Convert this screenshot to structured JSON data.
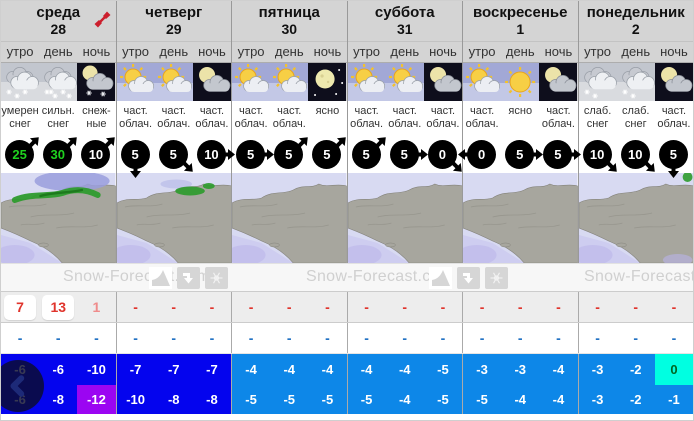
{
  "brand": "Snow-Forecast.com",
  "time_labels": [
    "утро",
    "день",
    "ночь"
  ],
  "colors": {
    "temp_dark_blue": "#0404ee",
    "temp_light_blue": "#0d87e8",
    "temp_purple": "#9b05f2",
    "temp_cyan": "#00ffe1",
    "snow_red": "#e0342c",
    "rain_blue": "#2272c3",
    "wind_green": "#1fd11f",
    "header_gray": "#d4d4d4",
    "expand_red": "#cc1f2d"
  },
  "watermark_icon_names": [
    "area-curve-icon",
    "download-icon",
    "snowflake-icon"
  ],
  "days": [
    {
      "name": "среда",
      "date": "28",
      "has_expand_icon": true,
      "map": "storm-west",
      "periods": [
        {
          "icon": "snow-moderate",
          "desc": [
            "умерен",
            "снег"
          ],
          "wind": "25",
          "wind_green": true,
          "dir": "NE"
        },
        {
          "icon": "snow-heavy",
          "desc": [
            "сильн.",
            "снег"
          ],
          "wind": "30",
          "wind_green": true,
          "dir": "NE"
        },
        {
          "icon": "night-snow",
          "desc": [
            "снеж-",
            "ные"
          ],
          "wind": "10",
          "wind_green": false,
          "dir": "NE"
        }
      ],
      "snow": [
        "7",
        "13",
        "1"
      ],
      "snow_styles": [
        "pill",
        "pill",
        "faded"
      ],
      "rain": [
        "-",
        "-",
        "-"
      ],
      "tmax": [
        {
          "v": "-6",
          "c": "dark"
        },
        {
          "v": "-6",
          "c": "dark"
        },
        {
          "v": "-10",
          "c": "dark"
        }
      ],
      "tmin": [
        {
          "v": "-6",
          "c": "dark"
        },
        {
          "v": "-8",
          "c": "dark"
        },
        {
          "v": "-12",
          "c": "purple"
        }
      ]
    },
    {
      "name": "четверг",
      "date": "29",
      "has_expand_icon": false,
      "map": "storm-east",
      "periods": [
        {
          "icon": "partly-sunny",
          "desc": [
            "част.",
            "облач."
          ],
          "wind": "5",
          "wind_green": false,
          "dir": "S"
        },
        {
          "icon": "partly-sunny",
          "desc": [
            "част.",
            "облач."
          ],
          "wind": "5",
          "wind_green": false,
          "dir": "SE"
        },
        {
          "icon": "night-partly-cloudy",
          "desc": [
            "част.",
            "облач."
          ],
          "wind": "10",
          "wind_green": false,
          "dir": "E"
        }
      ],
      "snow": [
        "-",
        "-",
        "-"
      ],
      "snow_styles": [
        "dash",
        "dash",
        "dash"
      ],
      "rain": [
        "-",
        "-",
        "-"
      ],
      "tmax": [
        {
          "v": "-7",
          "c": "dark"
        },
        {
          "v": "-7",
          "c": "dark"
        },
        {
          "v": "-7",
          "c": "dark"
        }
      ],
      "tmin": [
        {
          "v": "-10",
          "c": "dark"
        },
        {
          "v": "-8",
          "c": "dark"
        },
        {
          "v": "-8",
          "c": "dark"
        }
      ]
    },
    {
      "name": "пятница",
      "date": "30",
      "has_expand_icon": false,
      "map": "calm",
      "periods": [
        {
          "icon": "partly-sunny",
          "desc": [
            "част.",
            "облач."
          ],
          "wind": "5",
          "wind_green": false,
          "dir": "E"
        },
        {
          "icon": "partly-sunny",
          "desc": [
            "част.",
            "облач."
          ],
          "wind": "5",
          "wind_green": false,
          "dir": "NE"
        },
        {
          "icon": "clear-night",
          "desc": [
            "ясно",
            ""
          ],
          "wind": "5",
          "wind_green": false,
          "dir": "NE"
        }
      ],
      "snow": [
        "-",
        "-",
        "-"
      ],
      "snow_styles": [
        "dash",
        "dash",
        "dash"
      ],
      "rain": [
        "-",
        "-",
        "-"
      ],
      "tmax": [
        {
          "v": "-4",
          "c": "light"
        },
        {
          "v": "-4",
          "c": "light"
        },
        {
          "v": "-4",
          "c": "light"
        }
      ],
      "tmin": [
        {
          "v": "-5",
          "c": "light"
        },
        {
          "v": "-5",
          "c": "light"
        },
        {
          "v": "-5",
          "c": "light"
        }
      ]
    },
    {
      "name": "суббота",
      "date": "31",
      "has_expand_icon": false,
      "map": "calm",
      "periods": [
        {
          "icon": "partly-sunny",
          "desc": [
            "част.",
            "облач."
          ],
          "wind": "5",
          "wind_green": false,
          "dir": "NE"
        },
        {
          "icon": "partly-sunny",
          "desc": [
            "част.",
            "облач."
          ],
          "wind": "5",
          "wind_green": false,
          "dir": "E"
        },
        {
          "icon": "night-partly-cloudy",
          "desc": [
            "част.",
            "облач."
          ],
          "wind": "0",
          "wind_green": false,
          "dir": "SE"
        }
      ],
      "snow": [
        "-",
        "-",
        "-"
      ],
      "snow_styles": [
        "dash",
        "dash",
        "dash"
      ],
      "rain": [
        "-",
        "-",
        "-"
      ],
      "tmax": [
        {
          "v": "-4",
          "c": "light"
        },
        {
          "v": "-4",
          "c": "light"
        },
        {
          "v": "-5",
          "c": "light"
        }
      ],
      "tmin": [
        {
          "v": "-5",
          "c": "light"
        },
        {
          "v": "-4",
          "c": "light"
        },
        {
          "v": "-5",
          "c": "light"
        }
      ]
    },
    {
      "name": "воскресенье",
      "date": "1",
      "has_expand_icon": false,
      "map": "calm",
      "periods": [
        {
          "icon": "partly-sunny",
          "desc": [
            "част.",
            "облач."
          ],
          "wind": "0",
          "wind_green": false,
          "dir": "W"
        },
        {
          "icon": "sunny",
          "desc": [
            "ясно",
            ""
          ],
          "wind": "5",
          "wind_green": false,
          "dir": "E"
        },
        {
          "icon": "night-partly-cloudy",
          "desc": [
            "част.",
            "облач."
          ],
          "wind": "5",
          "wind_green": false,
          "dir": "E"
        }
      ],
      "snow": [
        "-",
        "-",
        "-"
      ],
      "snow_styles": [
        "dash",
        "dash",
        "dash"
      ],
      "rain": [
        "-",
        "-",
        "-"
      ],
      "tmax": [
        {
          "v": "-3",
          "c": "light"
        },
        {
          "v": "-3",
          "c": "light"
        },
        {
          "v": "-4",
          "c": "light"
        }
      ],
      "tmin": [
        {
          "v": "-5",
          "c": "light"
        },
        {
          "v": "-4",
          "c": "light"
        },
        {
          "v": "-4",
          "c": "light"
        }
      ]
    },
    {
      "name": "понедельник",
      "date": "2",
      "has_expand_icon": false,
      "map": "calm-green",
      "periods": [
        {
          "icon": "light-snow",
          "desc": [
            "слаб.",
            "снег"
          ],
          "wind": "10",
          "wind_green": false,
          "dir": "SE"
        },
        {
          "icon": "light-snow",
          "desc": [
            "слаб.",
            "снег"
          ],
          "wind": "10",
          "wind_green": false,
          "dir": "SE"
        },
        {
          "icon": "night-partly-cloudy",
          "desc": [
            "част.",
            "облач."
          ],
          "wind": "5",
          "wind_green": false,
          "dir": "S"
        }
      ],
      "snow": [
        "-",
        "-",
        "-"
      ],
      "snow_styles": [
        "dash",
        "dash",
        "dash"
      ],
      "rain": [
        "-",
        "-",
        "-"
      ],
      "tmax": [
        {
          "v": "-3",
          "c": "light"
        },
        {
          "v": "-2",
          "c": "light"
        },
        {
          "v": "0",
          "c": "cyan"
        }
      ],
      "tmin": [
        {
          "v": "-3",
          "c": "light"
        },
        {
          "v": "-2",
          "c": "light"
        },
        {
          "v": "-1",
          "c": "light"
        }
      ]
    }
  ]
}
